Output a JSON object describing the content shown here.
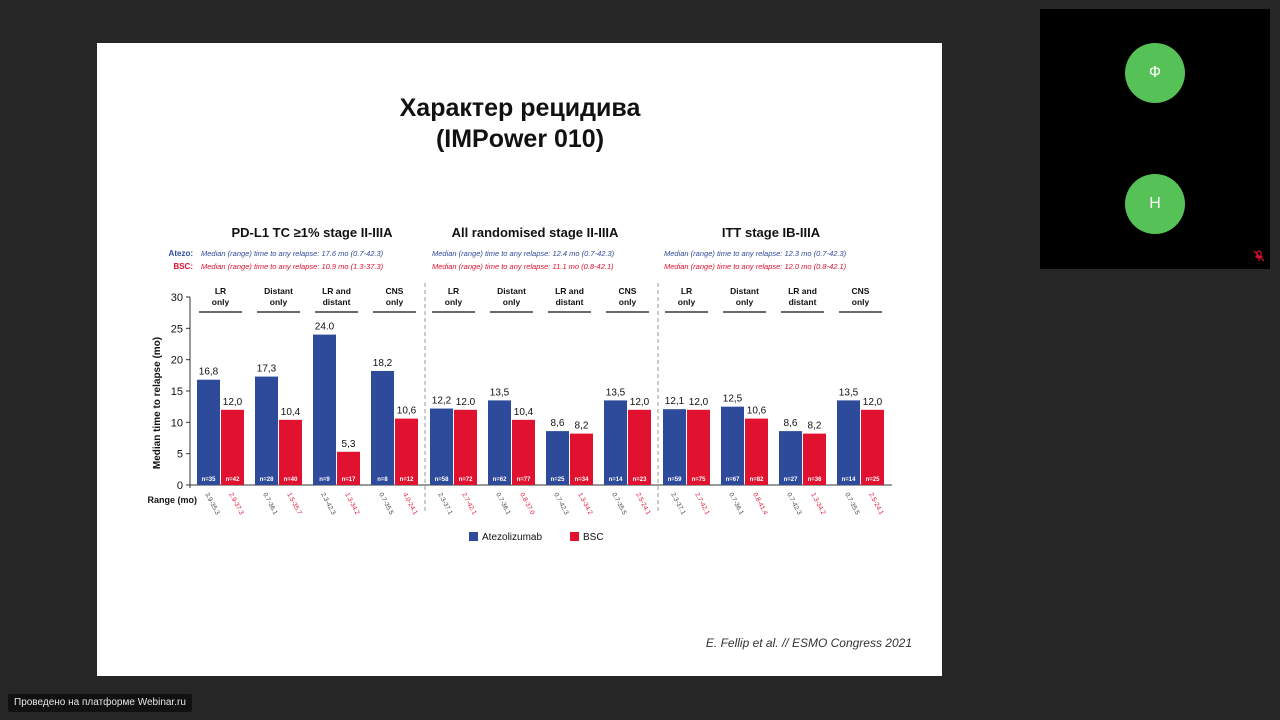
{
  "slide": {
    "title_line1": "Характер рецидива",
    "title_line2": "(IMPower 010)",
    "citation": "E. Fellip et al. // ESMO Congress 2021"
  },
  "chart_data": {
    "type": "bar",
    "ylabel": "Median time to relapse (mo)",
    "ylim": [
      0,
      30
    ],
    "yticks": [
      0,
      5,
      10,
      15,
      20,
      25,
      30
    ],
    "range_label": "Range (mo)",
    "legend_atezo_label": "Atezo:",
    "legend_bsc_label": "BSC:",
    "series_names": [
      "Atezolizumab",
      "BSC"
    ],
    "colors": {
      "atezo": "#2e4a9b",
      "bsc": "#e0122f"
    },
    "panels": [
      {
        "title": "PD-L1 TC ≥1% stage II-IIIA",
        "atezo_note": "Median (range) time to any relapse: 17.6 mo (0.7-42.3)",
        "bsc_note": "Median (range) time to any relapse: 10.9 mo (1.3-37.3)",
        "groups": [
          {
            "label": [
              "LR",
              "only"
            ],
            "atezo": 16.8,
            "bsc": 12.0,
            "atezo_label": "16,8",
            "bsc_label": "12,0",
            "atezo_n": "n=35",
            "bsc_n": "n=42",
            "atezo_range": "3.9-35.3",
            "bsc_range": "2.9-37.3"
          },
          {
            "label": [
              "Distant",
              "only"
            ],
            "atezo": 17.3,
            "bsc": 10.4,
            "atezo_label": "17,3",
            "bsc_label": "10,4",
            "atezo_n": "n=28",
            "bsc_n": "n=40",
            "atezo_range": "0.7-36.1",
            "bsc_range": "1.5-35.7"
          },
          {
            "label": [
              "LR and",
              "distant"
            ],
            "atezo": 24.0,
            "bsc": 5.3,
            "atezo_label": "24.0",
            "bsc_label": "5,3",
            "atezo_n": "n=9",
            "bsc_n": "n=17",
            "atezo_range": "2.3-42.3",
            "bsc_range": "1.3-34.2"
          },
          {
            "label": [
              "CNS",
              "only"
            ],
            "atezo": 18.2,
            "bsc": 10.6,
            "atezo_label": "18,2",
            "bsc_label": "10,6",
            "atezo_n": "n=8",
            "bsc_n": "n=12",
            "atezo_range": "0.7-35.5",
            "bsc_range": "4.0-24.1"
          }
        ]
      },
      {
        "title": "All randomised stage II-IIIA",
        "atezo_note": "Median (range) time to any relapse: 12.4 mo (0.7-42.3)",
        "bsc_note": "Median (range) time to any relapse: 11.1 mo (0.8-42.1)",
        "groups": [
          {
            "label": [
              "LR",
              "only"
            ],
            "atezo": 12.2,
            "bsc": 12.0,
            "atezo_label": "12,2",
            "bsc_label": "12.0",
            "atezo_n": "n=58",
            "bsc_n": "n=72",
            "atezo_range": "2.3-37.1",
            "bsc_range": "2.7-42.1"
          },
          {
            "label": [
              "Distant",
              "only"
            ],
            "atezo": 13.5,
            "bsc": 10.4,
            "atezo_label": "13,5",
            "bsc_label": "10,4",
            "atezo_n": "n=62",
            "bsc_n": "n=77",
            "atezo_range": "0.7-36.1",
            "bsc_range": "0.8-37.0"
          },
          {
            "label": [
              "LR and",
              "distant"
            ],
            "atezo": 8.6,
            "bsc": 8.2,
            "atezo_label": "8,6",
            "bsc_label": "8,2",
            "atezo_n": "n=25",
            "bsc_n": "n=34",
            "atezo_range": "0.7-42.3",
            "bsc_range": "1.3-34.2"
          },
          {
            "label": [
              "CNS",
              "only"
            ],
            "atezo": 13.5,
            "bsc": 12.0,
            "atezo_label": "13,5",
            "bsc_label": "12,0",
            "atezo_n": "n=14",
            "bsc_n": "n=23",
            "atezo_range": "0.7-35.5",
            "bsc_range": "2.5-24.1"
          }
        ]
      },
      {
        "title": "ITT stage IB-IIIA",
        "atezo_note": "Median (range) time to any relapse: 12.3 mo (0.7-42.3)",
        "bsc_note": "Median (range) time to any relapse: 12.0 mo (0.8-42.1)",
        "groups": [
          {
            "label": [
              "LR",
              "only"
            ],
            "atezo": 12.1,
            "bsc": 12.0,
            "atezo_label": "12,1",
            "bsc_label": "12,0",
            "atezo_n": "n=59",
            "bsc_n": "n=75",
            "atezo_range": "2.3-37.1",
            "bsc_range": "2.7-42.1"
          },
          {
            "label": [
              "Distant",
              "only"
            ],
            "atezo": 12.5,
            "bsc": 10.6,
            "atezo_label": "12,5",
            "bsc_label": "10,6",
            "atezo_n": "n=67",
            "bsc_n": "n=82",
            "atezo_range": "0.7-36.1",
            "bsc_range": "0.8-41.4"
          },
          {
            "label": [
              "LR and",
              "distant"
            ],
            "atezo": 8.6,
            "bsc": 8.2,
            "atezo_label": "8,6",
            "bsc_label": "8,2",
            "atezo_n": "n=27",
            "bsc_n": "n=36",
            "atezo_range": "0.7-42.3",
            "bsc_range": "1.3-34.2"
          },
          {
            "label": [
              "CNS",
              "only"
            ],
            "atezo": 13.5,
            "bsc": 12.0,
            "atezo_label": "13,5",
            "bsc_label": "12,0",
            "atezo_n": "n=14",
            "bsc_n": "n=25",
            "atezo_range": "0.7-35.5",
            "bsc_range": "2.5-24.1"
          }
        ]
      }
    ]
  },
  "participants": [
    {
      "initial": "Ф",
      "color": "#56c156"
    },
    {
      "initial": "Н",
      "color": "#56c156"
    }
  ],
  "mic_icon": "mic-muted-icon",
  "mic_color": "#e0122f",
  "footer": {
    "text": "Проведено на платформе Webinar.ru"
  }
}
